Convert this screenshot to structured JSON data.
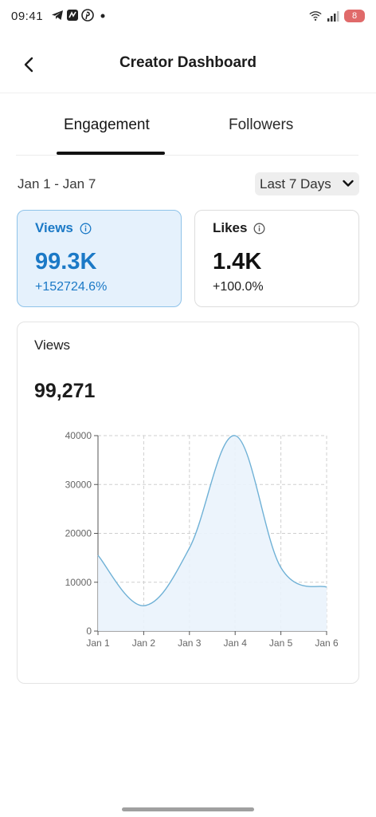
{
  "status_bar": {
    "time": "09:41",
    "left_icons": [
      "telegram-icon",
      "app-icon",
      "pinterest-icon",
      "dot-icon"
    ],
    "right_icons": [
      "wifi-icon",
      "signal-icon"
    ],
    "battery": "8"
  },
  "header": {
    "title": "Creator Dashboard",
    "back_icon": "back-arrow-icon"
  },
  "tabs": [
    {
      "label": "Engagement",
      "active": true
    },
    {
      "label": "Followers",
      "active": false
    }
  ],
  "date_range": "Jan 1 - Jan 7",
  "period_select": {
    "selected": "Last 7 Days"
  },
  "metrics": {
    "views": {
      "label": "Views",
      "value": "99.3K",
      "change": "+152724.6%",
      "selected": true
    },
    "likes": {
      "label": "Likes",
      "value": "1.4K",
      "change": "+100.0%",
      "selected": false
    }
  },
  "chart_card": {
    "title": "Views",
    "total": "99,271"
  },
  "colors": {
    "accent": "#1b79c6",
    "selected_card_bg": "#e5f1fc",
    "line": "#6fb1d6",
    "area_fill": "#eaf3fc"
  },
  "chart_data": {
    "type": "area",
    "x": [
      "Jan 1",
      "Jan 2",
      "Jan 3",
      "Jan 4",
      "Jan 5",
      "Jan 6"
    ],
    "series": [
      {
        "values": [
          15500,
          5200,
          17000,
          40000,
          13000,
          9000
        ]
      }
    ],
    "ylim": [
      0,
      40000
    ],
    "yticks": [
      0,
      10000,
      20000,
      30000,
      40000
    ],
    "grid": true,
    "xlabel": "",
    "ylabel": ""
  }
}
